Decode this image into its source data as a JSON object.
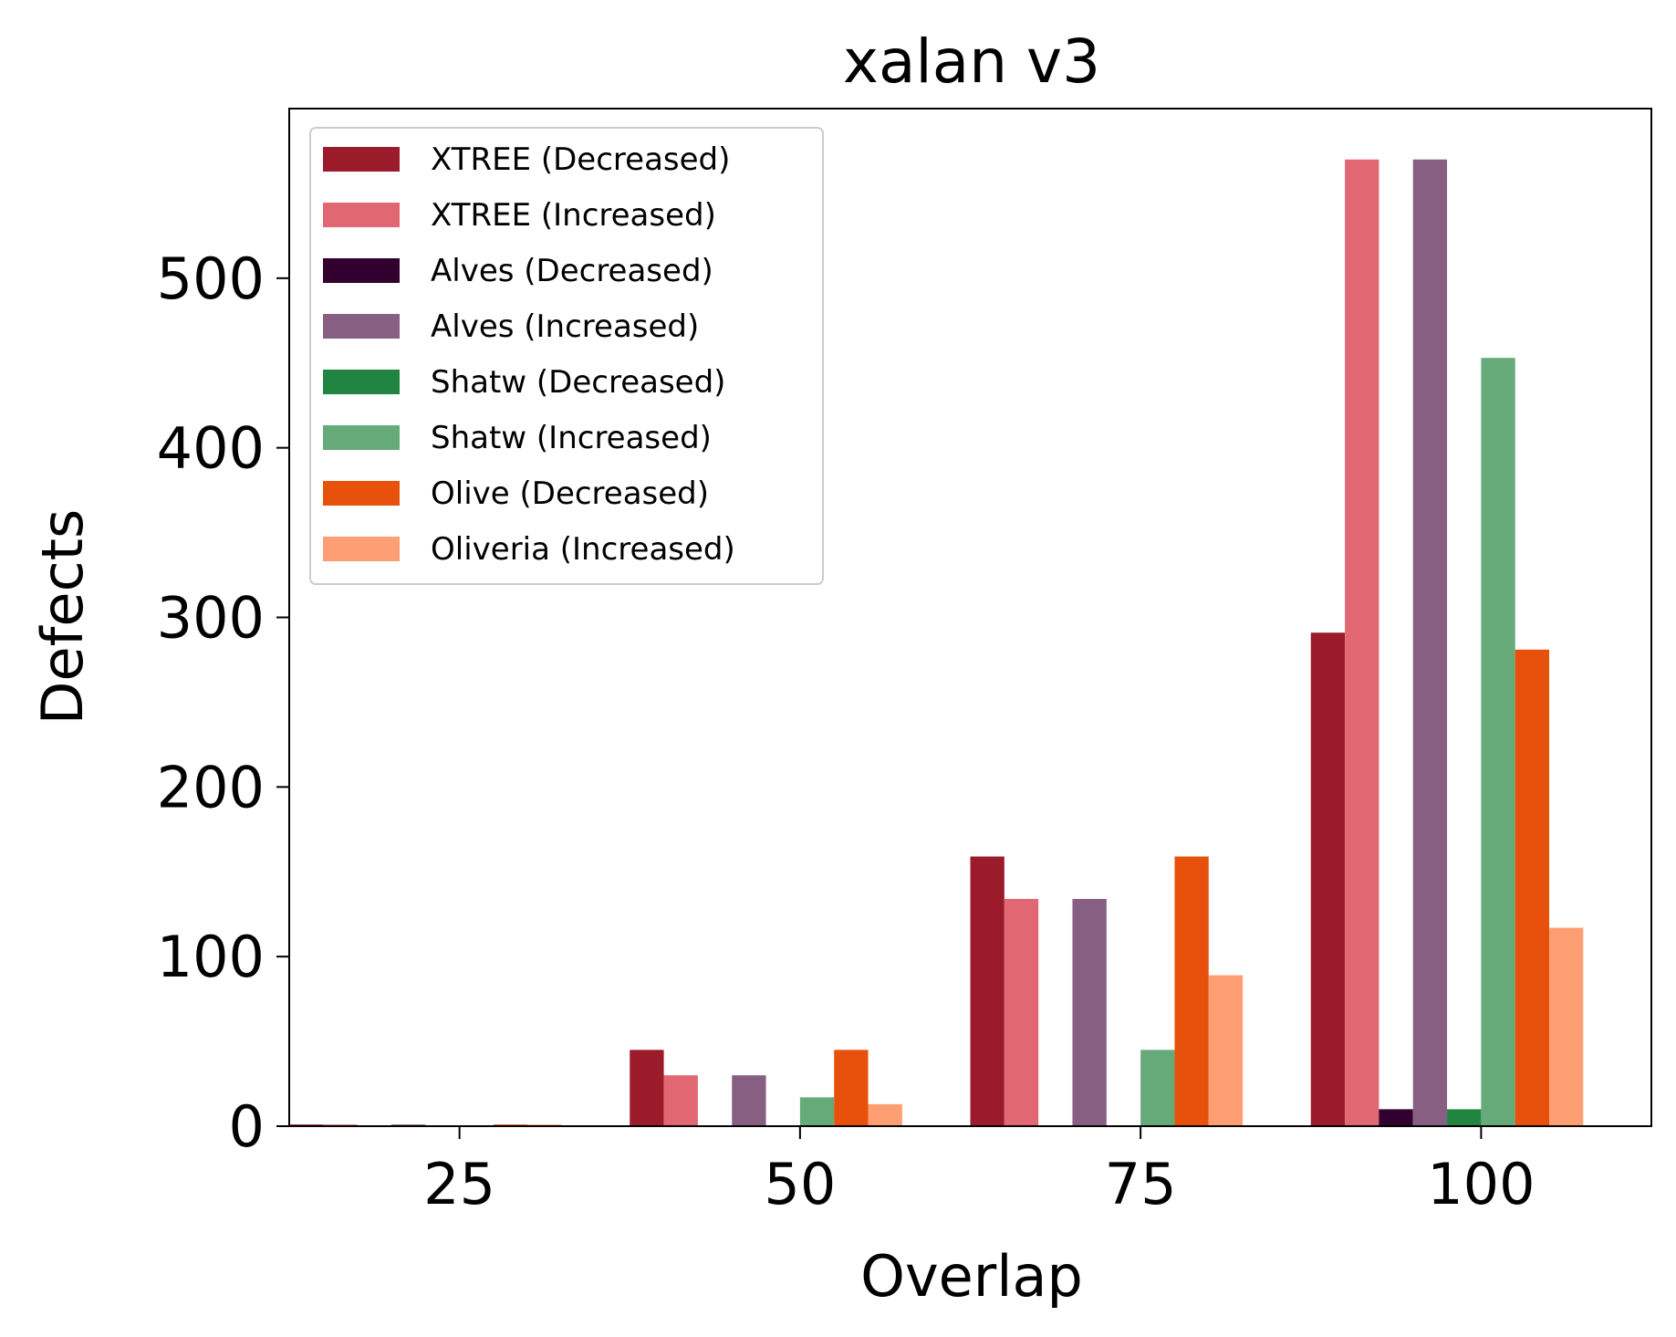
{
  "chart_data": {
    "type": "bar",
    "title": "xalan v3",
    "xlabel": "Overlap",
    "ylabel": "Defects",
    "xlim": [
      12.5,
      112.5
    ],
    "ylim": [
      0,
      600
    ],
    "xticks": [
      25,
      50,
      75,
      100
    ],
    "yticks": [
      0,
      100,
      200,
      300,
      400,
      500
    ],
    "bar_width_x": 2.5,
    "group_width_x": 25,
    "groups": [
      25,
      50,
      75,
      100
    ],
    "series": [
      {
        "name": "XTREE (Decreased)",
        "color": "#9b1b2b",
        "values": [
          1,
          45,
          159,
          291
        ]
      },
      {
        "name": "XTREE (Increased)",
        "color": "#e16873",
        "values": [
          1,
          30,
          134,
          570
        ]
      },
      {
        "name": "Alves (Decreased)",
        "color": "#32002e",
        "values": [
          0,
          0,
          0,
          10
        ]
      },
      {
        "name": "Alves (Increased)",
        "color": "#875f82",
        "values": [
          1,
          30,
          134,
          570
        ]
      },
      {
        "name": "Shatw (Decreased)",
        "color": "#228441",
        "values": [
          0,
          0,
          0,
          10
        ]
      },
      {
        "name": "Shatw (Increased)",
        "color": "#66aa7a",
        "values": [
          0,
          17,
          45,
          453
        ]
      },
      {
        "name": "Olive (Decreased)",
        "color": "#e8510c",
        "values": [
          1,
          45,
          159,
          281
        ]
      },
      {
        "name": "Oliveria (Increased)",
        "color": "#fe9f73",
        "values": [
          1,
          13,
          89,
          117
        ]
      }
    ],
    "legend_position": "top-left",
    "grid": false
  }
}
